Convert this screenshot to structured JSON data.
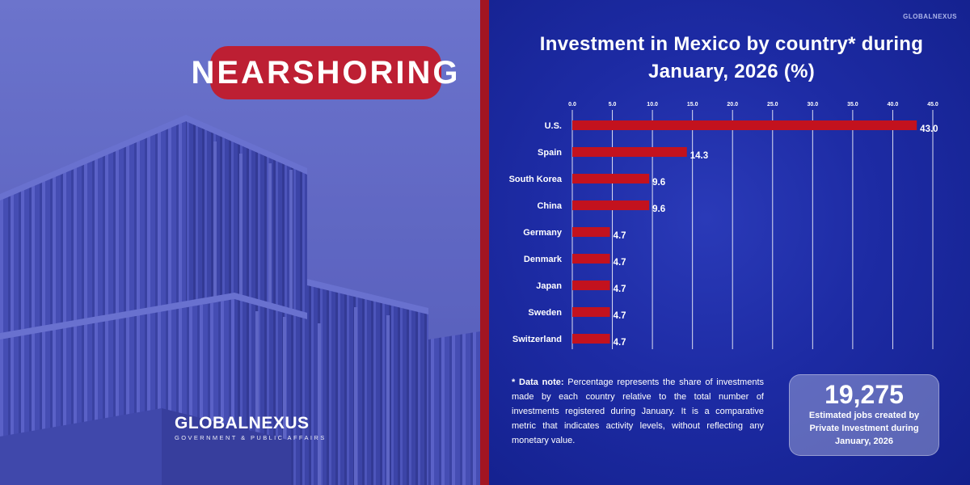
{
  "left": {
    "badge": "NEARSHORING",
    "logo_brand": "GLOBALNEXUS",
    "logo_tagline": "GOVERNMENT & PUBLIC AFFAIRS"
  },
  "right": {
    "small_logo": "GLOBALNEXUS"
  },
  "colors": {
    "bar": "#c3121e",
    "panel_blue": "#1d2ba4",
    "divider_red": "#a21522",
    "badge_red": "#bd1f33"
  },
  "chart_data": {
    "type": "bar",
    "orientation": "horizontal",
    "title": "Investment in Mexico by country* during January, 2026 (%)",
    "categories": [
      "U.S.",
      "Spain",
      "South Korea",
      "China",
      "Germany",
      "Denmark",
      "Japan",
      "Sweden",
      "Switzerland"
    ],
    "values": [
      43.0,
      14.3,
      9.6,
      9.6,
      4.7,
      4.7,
      4.7,
      4.7,
      4.7
    ],
    "value_labels": [
      "43.0",
      "14.3",
      "9.6",
      "9.6",
      "4.7",
      "4.7",
      "4.7",
      "4.7",
      "4.7"
    ],
    "ticks": [
      "0.0",
      "5.0",
      "10.0",
      "15.0",
      "20.0",
      "25.0",
      "30.0",
      "35.0",
      "40.0",
      "45.0"
    ],
    "xlim": [
      0,
      45
    ],
    "axis_position": "top",
    "grid": true,
    "legend": false
  },
  "note": {
    "label": "* Data note:",
    "text": "Percentage represents the share of investments made by each country relative to the total number of investments registered during January. It is a comparative metric that indicates activity levels, without reflecting any monetary value."
  },
  "jobs": {
    "number": "19,275",
    "description": "Estimated jobs created by Private Investment during January, 2026"
  }
}
